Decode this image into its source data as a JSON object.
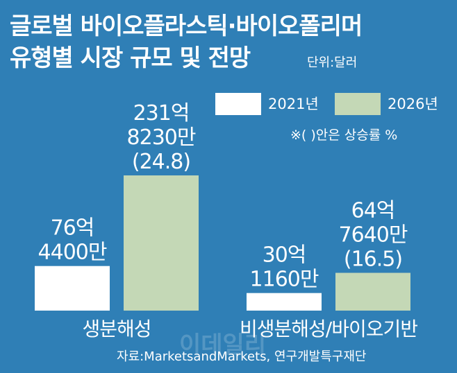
{
  "title": {
    "line1": "글로벌 바이오플라스틱·바이오폴리머",
    "line2": "유형별 시장 규모 및 전망"
  },
  "unit": "단위:달러",
  "legend": [
    {
      "label": "2021년",
      "color": "#ffffff"
    },
    {
      "label": "2026년",
      "color": "#c4d8b6"
    }
  ],
  "note": "※(  )안은 상승률 %",
  "source": "자료:MarketsandMarkets, 연구개발특구재단",
  "watermark": "이데일리",
  "chart_data": {
    "type": "bar",
    "categories": [
      "생분해성",
      "비생분해성/바이오기반"
    ],
    "series": [
      {
        "name": "2021년",
        "values": [
          7644000000,
          3011600000
        ]
      },
      {
        "name": "2026년",
        "values": [
          23182300000,
          6476400000
        ]
      }
    ],
    "labels": [
      [
        [
          "76억",
          "4400만"
        ],
        [
          "231억",
          "8230만",
          "(24.8)"
        ]
      ],
      [
        [
          "30억",
          "1160만"
        ],
        [
          "64억",
          "7640만",
          "(16.5)"
        ]
      ]
    ],
    "growth_rates": [
      24.8,
      16.5
    ]
  }
}
